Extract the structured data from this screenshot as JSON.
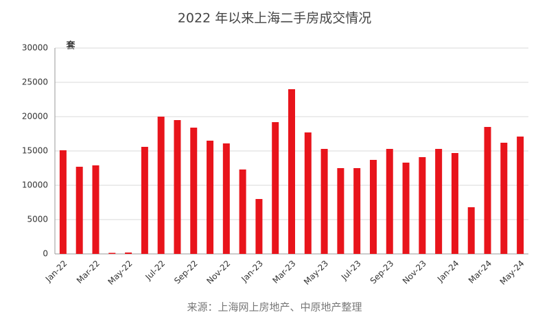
{
  "chart_data": {
    "type": "bar",
    "title": "2022 年以来上海二手房成交情况",
    "y_label": "套",
    "source": "来源：上海网上房地产、中原地产整理",
    "categories": [
      "Jan-22",
      null,
      "Mar-22",
      null,
      "May-22",
      null,
      "Jul-22",
      null,
      "Sep-22",
      null,
      "Nov-22",
      null,
      "Jan-23",
      null,
      "Mar-23",
      null,
      "May-23",
      null,
      "Jul-23",
      null,
      "Sep-23",
      null,
      "Nov-23",
      null,
      "Jan-24",
      null,
      "Mar-24",
      null,
      "May-24"
    ],
    "values": [
      15100,
      12700,
      12900,
      150,
      200,
      15600,
      20000,
      19500,
      18400,
      16500,
      16100,
      12300,
      8000,
      19200,
      24000,
      17700,
      15300,
      12500,
      12500,
      13700,
      15300,
      13300,
      14100,
      15300,
      14700,
      6800,
      18500,
      16200,
      17100
    ],
    "color": "#e8141b",
    "ylim": [
      0,
      30000
    ],
    "yticks": [
      0,
      5000,
      10000,
      15000,
      20000,
      25000,
      30000
    ],
    "grid": true
  }
}
